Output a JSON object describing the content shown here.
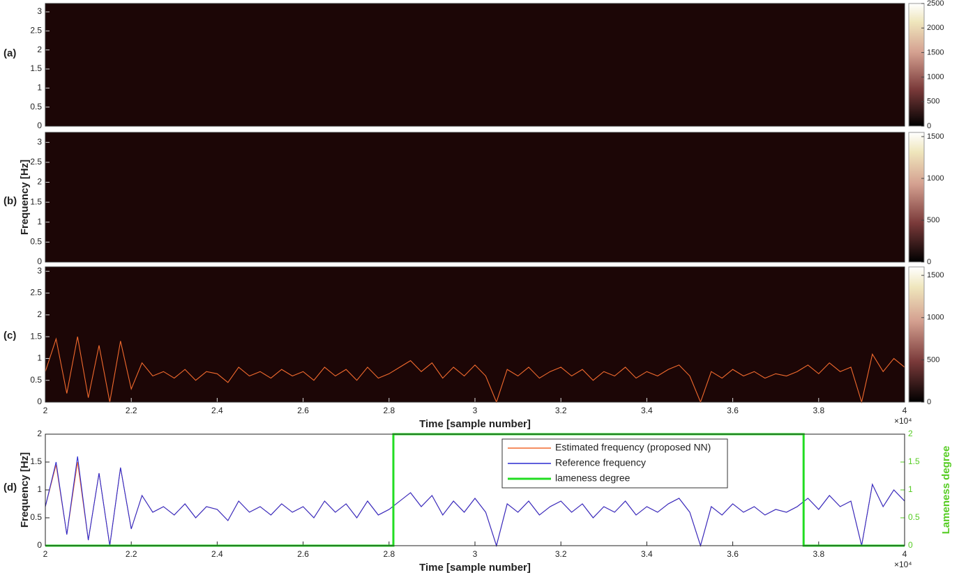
{
  "chart_data": [
    {
      "type": "heatmap",
      "panel_label": "(a)",
      "xlim": [
        20000,
        40000
      ],
      "ylim": [
        0,
        3.22
      ],
      "yticks": [
        0,
        0.5,
        1,
        1.5,
        2,
        2.5,
        3
      ],
      "clim": [
        0,
        2500
      ],
      "cticks": [
        0,
        500,
        1000,
        1500,
        2000,
        2500
      ]
    },
    {
      "type": "heatmap",
      "panel_label": "(b)",
      "ylabel": "Frequency [Hz]",
      "xlim": [
        20000,
        40000
      ],
      "ylim": [
        0,
        3.25
      ],
      "yticks": [
        0,
        0.5,
        1,
        1.5,
        2,
        2.5,
        3
      ],
      "clim": [
        0,
        1550
      ],
      "cticks": [
        0,
        500,
        1000,
        1500
      ]
    },
    {
      "type": "heatmap",
      "panel_label": "(c)",
      "xlabel": "Time [sample number]",
      "x_multiplier": "×10⁴",
      "xlim": [
        20000,
        40000
      ],
      "ylim": [
        0,
        3.1
      ],
      "yticks": [
        0,
        0.5,
        1,
        1.5,
        2,
        2.5,
        3
      ],
      "clim": [
        0,
        1600
      ],
      "cticks": [
        0,
        500,
        1000,
        1500
      ],
      "xticks": [
        {
          "value": 20000,
          "label": "2"
        },
        {
          "value": 22000,
          "label": "2.2"
        },
        {
          "value": 24000,
          "label": "2.4"
        },
        {
          "value": 26000,
          "label": "2.6"
        },
        {
          "value": 28000,
          "label": "2.8"
        },
        {
          "value": 30000,
          "label": "3"
        },
        {
          "value": 32000,
          "label": "3.2"
        },
        {
          "value": 34000,
          "label": "3.4"
        },
        {
          "value": 36000,
          "label": "3.6"
        },
        {
          "value": 38000,
          "label": "3.8"
        },
        {
          "value": 40000,
          "label": "4"
        }
      ],
      "x": [
        20000,
        20250,
        20500,
        20750,
        21000,
        21250,
        21500,
        21750,
        22000,
        22250,
        22500,
        22750,
        23000,
        23250,
        23500,
        23750,
        24000,
        24250,
        24500,
        24750,
        25000,
        25250,
        25500,
        25750,
        26000,
        26250,
        26500,
        26750,
        27000,
        27250,
        27500,
        27750,
        28000,
        28250,
        28500,
        28750,
        29000,
        29250,
        29500,
        29750,
        30000,
        30250,
        30500,
        30750,
        31000,
        31250,
        31500,
        31750,
        32000,
        32250,
        32500,
        32750,
        33000,
        33250,
        33500,
        33750,
        34000,
        34250,
        34500,
        34750,
        35000,
        35250,
        35500,
        35750,
        36000,
        36250,
        36500,
        36750,
        37000,
        37250,
        37500,
        37750,
        38000,
        38250,
        38500,
        38750,
        39000,
        39250,
        39500,
        39750,
        40000
      ],
      "series": [
        {
          "color": "#f26a2e",
          "values": [
            0.7,
            1.45,
            0.2,
            1.5,
            0.1,
            1.3,
            0.0,
            1.4,
            0.3,
            0.9,
            0.6,
            0.7,
            0.55,
            0.75,
            0.5,
            0.7,
            0.65,
            0.45,
            0.8,
            0.6,
            0.7,
            0.55,
            0.75,
            0.6,
            0.7,
            0.5,
            0.8,
            0.6,
            0.75,
            0.5,
            0.8,
            0.55,
            0.65,
            0.8,
            0.95,
            0.7,
            0.9,
            0.55,
            0.8,
            0.6,
            0.85,
            0.6,
            0.0,
            0.75,
            0.6,
            0.8,
            0.55,
            0.7,
            0.8,
            0.6,
            0.75,
            0.5,
            0.7,
            0.6,
            0.8,
            0.55,
            0.7,
            0.6,
            0.75,
            0.85,
            0.6,
            0.0,
            0.7,
            0.55,
            0.75,
            0.6,
            0.7,
            0.55,
            0.65,
            0.6,
            0.7,
            0.85,
            0.65,
            0.9,
            0.7,
            0.8,
            0.0,
            1.1,
            0.7,
            1.0,
            0.8
          ]
        }
      ]
    },
    {
      "type": "line",
      "panel_label": "(d)",
      "ylabel": "Frequency [Hz]",
      "y2label": "Lameness degree",
      "xlabel": "Time [sample number]",
      "x_multiplier": "×10⁴",
      "xlim": [
        20000,
        40000
      ],
      "ylim": [
        0,
        2
      ],
      "yticks": [
        0,
        0.5,
        1,
        1.5,
        2
      ],
      "y2lim": [
        0,
        2
      ],
      "y2ticks": [
        0,
        0.5,
        1,
        1.5,
        2
      ],
      "y2color": "#55cc22",
      "legend": "upper center",
      "xticks": [
        {
          "value": 20000,
          "label": "2"
        },
        {
          "value": 22000,
          "label": "2.2"
        },
        {
          "value": 24000,
          "label": "2.4"
        },
        {
          "value": 26000,
          "label": "2.6"
        },
        {
          "value": 28000,
          "label": "2.8"
        },
        {
          "value": 30000,
          "label": "3"
        },
        {
          "value": 32000,
          "label": "3.2"
        },
        {
          "value": 34000,
          "label": "3.4"
        },
        {
          "value": 36000,
          "label": "3.6"
        },
        {
          "value": 38000,
          "label": "3.8"
        },
        {
          "value": 40000,
          "label": "4"
        }
      ],
      "x": [
        20000,
        20250,
        20500,
        20750,
        21000,
        21250,
        21500,
        21750,
        22000,
        22250,
        22500,
        22750,
        23000,
        23250,
        23500,
        23750,
        24000,
        24250,
        24500,
        24750,
        25000,
        25250,
        25500,
        25750,
        26000,
        26250,
        26500,
        26750,
        27000,
        27250,
        27500,
        27750,
        28000,
        28250,
        28500,
        28750,
        29000,
        29250,
        29500,
        29750,
        30000,
        30250,
        30500,
        30750,
        31000,
        31250,
        31500,
        31750,
        32000,
        32250,
        32500,
        32750,
        33000,
        33250,
        33500,
        33750,
        34000,
        34250,
        34500,
        34750,
        35000,
        35250,
        35500,
        35750,
        36000,
        36250,
        36500,
        36750,
        37000,
        37250,
        37500,
        37750,
        38000,
        38250,
        38500,
        38750,
        39000,
        39250,
        39500,
        39750,
        40000
      ],
      "series": [
        {
          "name": "Estimated frequency (proposed NN)",
          "color": "#f26a2e",
          "values": [
            0.7,
            1.45,
            0.2,
            1.5,
            0.1,
            1.3,
            0.0,
            1.4,
            0.3,
            0.9,
            0.6,
            0.7,
            0.55,
            0.75,
            0.5,
            0.7,
            0.65,
            0.45,
            0.8,
            0.6,
            0.7,
            0.55,
            0.75,
            0.6,
            0.7,
            0.5,
            0.8,
            0.6,
            0.75,
            0.5,
            0.8,
            0.55,
            0.65,
            0.8,
            0.95,
            0.7,
            0.9,
            0.55,
            0.8,
            0.6,
            0.85,
            0.6,
            0.0,
            0.75,
            0.6,
            0.8,
            0.55,
            0.7,
            0.8,
            0.6,
            0.75,
            0.5,
            0.7,
            0.6,
            0.8,
            0.55,
            0.7,
            0.6,
            0.75,
            0.85,
            0.6,
            0.0,
            0.7,
            0.55,
            0.75,
            0.6,
            0.7,
            0.55,
            0.65,
            0.6,
            0.7,
            0.85,
            0.65,
            0.9,
            0.7,
            0.8,
            0.0,
            1.1,
            0.7,
            1.0,
            0.8
          ]
        },
        {
          "name": "Reference frequency",
          "color": "#2a2ad0",
          "values": [
            0.7,
            1.5,
            0.2,
            1.6,
            0.1,
            1.3,
            0.0,
            1.4,
            0.3,
            0.9,
            0.6,
            0.7,
            0.55,
            0.75,
            0.5,
            0.7,
            0.65,
            0.45,
            0.8,
            0.6,
            0.7,
            0.55,
            0.75,
            0.6,
            0.7,
            0.5,
            0.8,
            0.6,
            0.75,
            0.5,
            0.8,
            0.55,
            0.65,
            0.8,
            0.95,
            0.7,
            0.9,
            0.55,
            0.8,
            0.6,
            0.85,
            0.6,
            0.0,
            0.75,
            0.6,
            0.8,
            0.55,
            0.7,
            0.8,
            0.6,
            0.75,
            0.5,
            0.7,
            0.6,
            0.8,
            0.55,
            0.7,
            0.6,
            0.75,
            0.85,
            0.6,
            0.0,
            0.7,
            0.55,
            0.75,
            0.6,
            0.7,
            0.55,
            0.65,
            0.6,
            0.7,
            0.85,
            0.65,
            0.9,
            0.7,
            0.8,
            0.0,
            1.1,
            0.7,
            1.0,
            0.8
          ]
        },
        {
          "name": "lameness degree",
          "color": "#22dd22",
          "axis": "y2",
          "x": [
            20000,
            28100,
            28100,
            37650,
            37650,
            40000
          ],
          "values": [
            0,
            0,
            2,
            2,
            0,
            0
          ]
        }
      ]
    }
  ]
}
